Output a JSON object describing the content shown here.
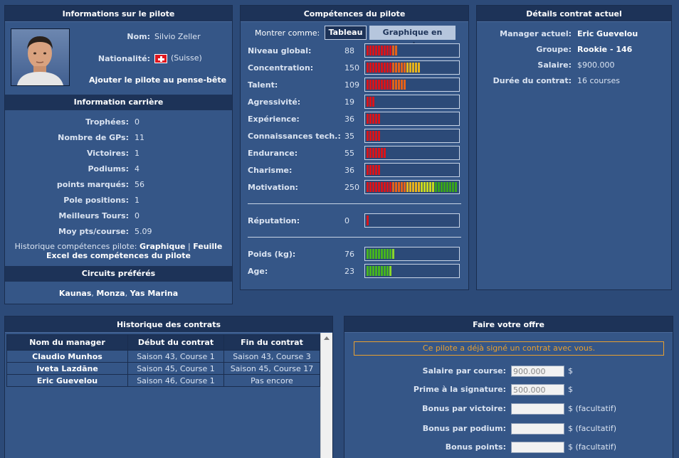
{
  "pilot": {
    "title": "Informations sur le pilote",
    "name_label": "Nom:",
    "name": "Silvio Zeller",
    "nationality_label": "Nationalité:",
    "nationality": "(Suisse)",
    "add_note": "Ajouter le pilote au pense-bête"
  },
  "career": {
    "title": "Information carrière",
    "rows": [
      {
        "label": "Trophées:",
        "value": "0"
      },
      {
        "label": "Nombre de GPs:",
        "value": "11"
      },
      {
        "label": "Victoires:",
        "value": "1"
      },
      {
        "label": "Podiums:",
        "value": "4"
      },
      {
        "label": "points marqués:",
        "value": "56"
      },
      {
        "label": "Pole positions:",
        "value": "1"
      },
      {
        "label": "Meilleurs Tours:",
        "value": "0"
      },
      {
        "label": "Moy pts/course:",
        "value": "5.09"
      }
    ],
    "history_prefix": "Historique compétences pilote:",
    "history_graph": "Graphique",
    "history_sep": "|",
    "history_sheet": "Feuille",
    "history_excel": "Excel des compétences du pilote"
  },
  "circuits": {
    "title": "Circuits préférés",
    "list": [
      "Kaunas",
      "Monza",
      "Yas Marina"
    ]
  },
  "skills": {
    "title": "Compétences du pilote",
    "show_as": "Montrer comme:",
    "tab_table": "Tableau",
    "tab_radar": "Graphique en radar",
    "rows": [
      {
        "label": "Niveau global:",
        "value": "88",
        "level": 0.35
      },
      {
        "label": "Concentration:",
        "value": "150",
        "level": 0.6
      },
      {
        "label": "Talent:",
        "value": "109",
        "level": 0.43
      },
      {
        "label": "Agressivité:",
        "value": "19",
        "level": 0.08
      },
      {
        "label": "Expérience:",
        "value": "36",
        "level": 0.15
      },
      {
        "label": "Connaissances tech.:",
        "value": "35",
        "level": 0.15
      },
      {
        "label": "Endurance:",
        "value": "55",
        "level": 0.23
      },
      {
        "label": "Charisme:",
        "value": "36",
        "level": 0.15
      },
      {
        "label": "Motivation:",
        "value": "250",
        "level": 1.0
      }
    ],
    "reputation": {
      "label": "Réputation:",
      "value": "0",
      "level": 0.04
    },
    "physical": [
      {
        "label": "Poids (kg):",
        "value": "76",
        "level": 0.3
      },
      {
        "label": "Age:",
        "value": "23",
        "level": 0.27
      }
    ]
  },
  "contract": {
    "title": "Détails contrat actuel",
    "rows": [
      {
        "label": "Manager actuel:",
        "value": "Eric Guevelou"
      },
      {
        "label": "Groupe:",
        "value": "Rookie - 146"
      },
      {
        "label": "Salaire:",
        "value": "$900.000"
      },
      {
        "label": "Durée du contrat:",
        "value": "16 courses"
      }
    ]
  },
  "history": {
    "title": "Historique des contrats",
    "columns": [
      "Nom du manager",
      "Début du contrat",
      "Fin du contrat"
    ],
    "rows": [
      [
        "Claudio Munhos",
        "Saison 43, Course 1",
        "Saison 43, Course 3"
      ],
      [
        "Iveta Lazdāne",
        "Saison 45, Course 1",
        "Saison 45, Course 17"
      ],
      [
        "Eric Guevelou",
        "Saison 46, Course 1",
        "Pas encore"
      ]
    ]
  },
  "offer": {
    "title": "Faire votre offre",
    "notice": "Ce pilote a déjà signé un contrat avec vous.",
    "fields": [
      {
        "label": "Salaire par course:",
        "value": "900.000",
        "suffix": "$"
      },
      {
        "label": "Prime à la signature:",
        "value": "500.000",
        "suffix": "$"
      },
      {
        "label": "Bonus par victoire:",
        "value": "",
        "suffix": "$ (facultatif)"
      },
      {
        "label": "Bonus par podium:",
        "value": "",
        "suffix": "$ (facultatif)"
      },
      {
        "label": "Bonus points:",
        "value": "",
        "suffix": "$ (facultatif)"
      }
    ]
  },
  "colors": {
    "accent": "#e8a030",
    "panel": "#355687",
    "header": "#1d3358"
  }
}
